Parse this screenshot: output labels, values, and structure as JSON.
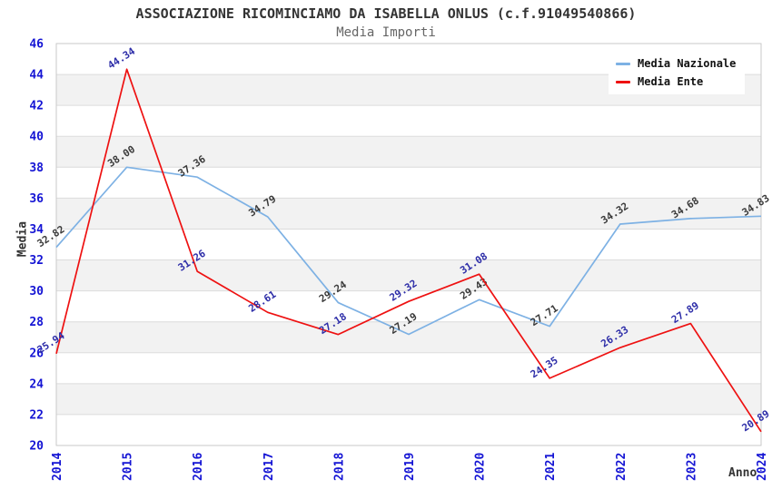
{
  "title": "ASSOCIAZIONE RICOMINCIAMO DA ISABELLA ONLUS (c.f.91049540866)",
  "subtitle": "Media Importi",
  "axes": {
    "x_label": "Anno",
    "y_label": "Media"
  },
  "legend": {
    "items": [
      {
        "label": "Media Nazionale",
        "color": "#7db1e4"
      },
      {
        "label": "Media Ente",
        "color": "#ee1111"
      }
    ]
  },
  "colors": {
    "background": "#ffffff",
    "band": "#f2f2f2",
    "grid": "#dcdcdc",
    "plot_border": "#c9c9c9",
    "tick_label": "#1414d4",
    "title": "#333333",
    "subtitle": "#666666"
  },
  "chart_data": {
    "type": "line",
    "title": "ASSOCIAZIONE RICOMINCIAMO DA ISABELLA ONLUS (c.f.91049540866)",
    "subtitle": "Media Importi",
    "x": [
      2014,
      2015,
      2016,
      2017,
      2018,
      2019,
      2020,
      2021,
      2022,
      2023,
      2024
    ],
    "xlabel": "Anno",
    "ylabel": "Media",
    "ylim": [
      20,
      46
    ],
    "ytick_step": 2,
    "grid": true,
    "legend_position": "top-right",
    "series": [
      {
        "name": "Media Nazionale",
        "color": "#7db1e4",
        "label_color": "#3a3a3a",
        "values": [
          32.82,
          38.0,
          37.36,
          34.79,
          29.24,
          27.19,
          29.43,
          27.71,
          34.32,
          34.68,
          34.83
        ]
      },
      {
        "name": "Media Ente",
        "color": "#ee1111",
        "label_color": "#2d2da8",
        "values": [
          25.94,
          44.34,
          31.26,
          28.61,
          27.18,
          29.32,
          31.08,
          24.35,
          26.33,
          27.89,
          20.89
        ]
      }
    ]
  }
}
